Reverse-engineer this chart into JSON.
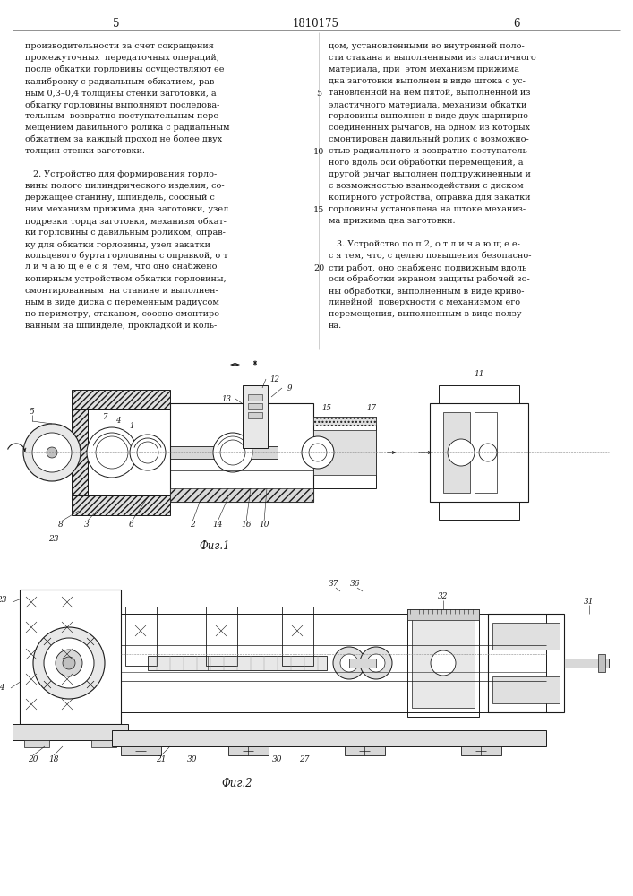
{
  "page_num_left": "5",
  "page_num_center": "1810175",
  "page_num_right": "6",
  "background_color": "#ffffff",
  "text_color": "#1a1a1a",
  "line_color": "#1a1a1a",
  "left_column": [
    "производительности за счет сокращения",
    "промежуточных  передаточных операций,",
    "после обкатки горловины осуществляют ее",
    "калибровку с радиальным обжатием, рав-",
    "ным 0,3–0,4 толщины стенки заготовки, а",
    "обкатку горловины выполняют последова-",
    "тельным  возвратно-поступательным пере-",
    "мещением давильного ролика с радиальным",
    "обжатием за каждый проход не более двух",
    "толщин стенки заготовки.",
    "",
    "   2. Устройство для формирования горло-",
    "вины полого цилиндрического изделия, со-",
    "держащее станину, шпиндель, соосный с",
    "ним механизм прижима дна заготовки, узел",
    "подрезки торца заготовки, механизм обкат-",
    "ки горловины с давильным роликом, оправ-",
    "ку для обкатки горловины, узел закатки",
    "кольцевого бурта горловины с оправкой, о т",
    "л и ч а ю щ е е с я  тем, что оно снабжено",
    "копирным устройством обкатки горловины,",
    "смонтированным  на станине и выполнен-",
    "ным в виде диска с переменным радиусом",
    "по периметру, стаканом, соосно смонтиро-",
    "ванным на шпинделе, прокладкой и коль-"
  ],
  "right_column": [
    "цом, установленными во внутренней поло-",
    "сти стакана и выполненными из эластичного",
    "материала, при  этом механизм прижима",
    "дна заготовки выполнен в виде штока с ус-",
    "тановленной на нем пятой, выполненной из",
    "эластичного материала, механизм обкатки",
    "горловины выполнен в виде двух шарнирно",
    "соединенных рычагов, на одном из которых",
    "смонтирован давильный ролик с возможно-",
    "стью радиального и возвратно-поступатель-",
    "ного вдоль оси обработки перемещений, а",
    "другой рычаг выполнен подпружиненным и",
    "с возможностью взаимодействия с диском",
    "копирного устройства, оправка для закатки",
    "горловины установлена на штоке механиз-",
    "ма прижима дна заготовки.",
    "",
    "   3. Устройство по п.2, о т л и ч а ю щ е е-",
    "с я тем, что, с целью повышения безопасно-",
    "сти работ, оно снабжено подвижным вдоль",
    "оси обработки экраном защиты рабочей зо-",
    "ны обработки, выполненным в виде криво-",
    "линейной  поверхности с механизмом его",
    "перемещения, выполненным в виде ползу-",
    "на."
  ],
  "line_numbers": [
    [
      4,
      "5"
    ],
    [
      9,
      "10"
    ],
    [
      14,
      "15"
    ],
    [
      19,
      "20"
    ]
  ],
  "fig1_caption": "Фиг.1",
  "fig2_caption": "Фиг.2",
  "hatch_color": "#444444",
  "light_gray": "#d8d8d8",
  "mid_gray": "#b0b0b0",
  "dark_gray": "#444444"
}
